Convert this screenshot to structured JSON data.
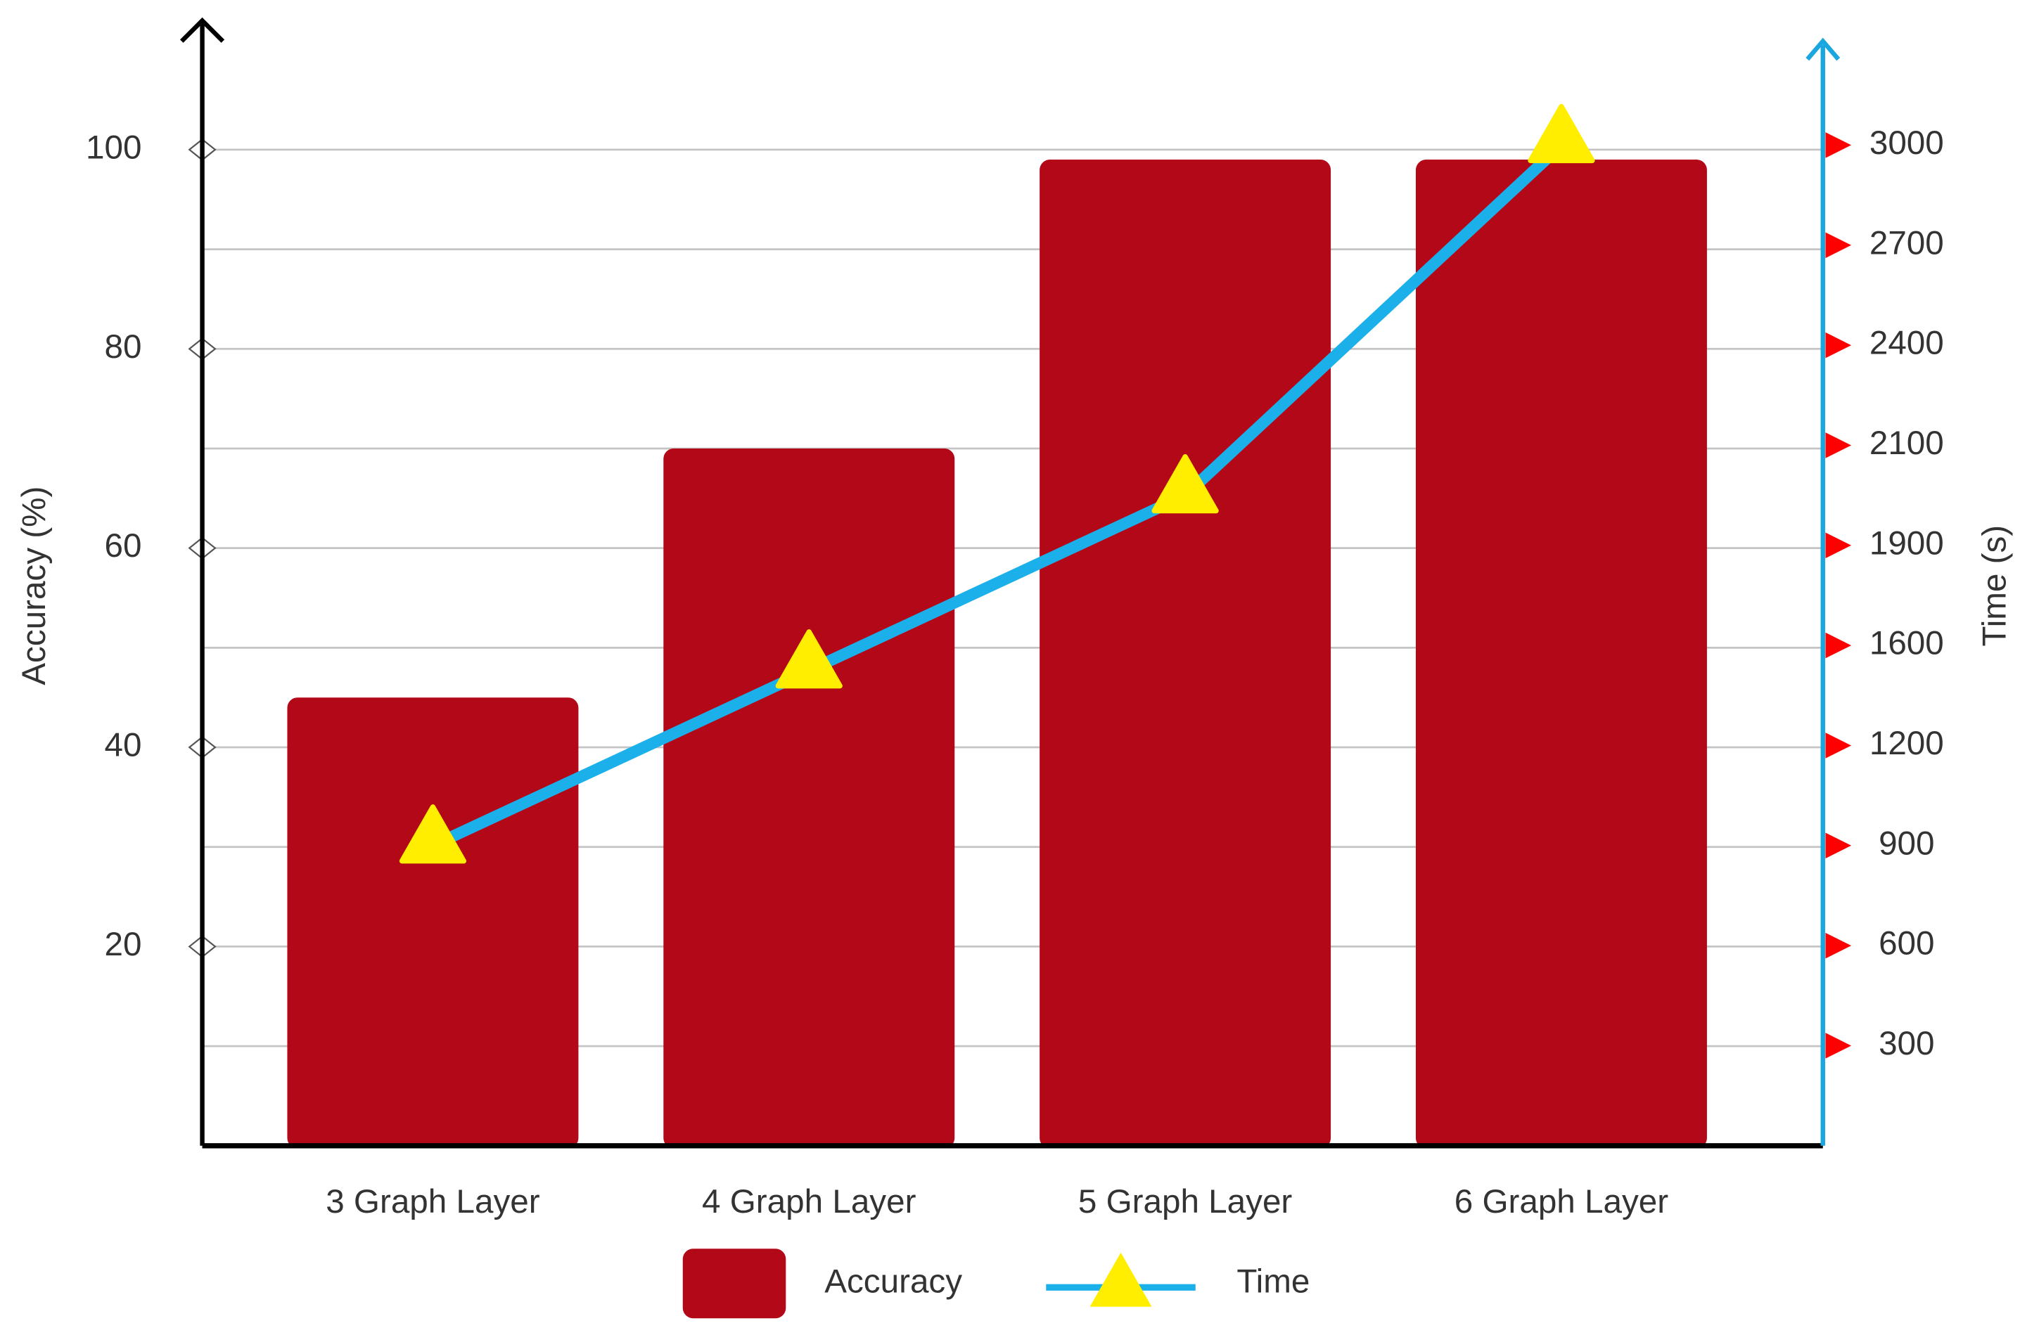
{
  "chart_data": {
    "type": "bar",
    "x_label": null,
    "y_label": "Accuracy (%)",
    "y2_label": "Time (s)",
    "categories": [
      "3 Graph Layer",
      "4 Graph Layer",
      "5 Graph Layer",
      "6 Graph Layer"
    ],
    "series": [
      {
        "name": "Accuracy",
        "type": "bar",
        "color": "#b30818",
        "values": [
          45,
          70,
          99,
          99
        ]
      },
      {
        "name": "Time",
        "type": "line",
        "axis": "y2",
        "color": "#1cb0ea",
        "marker_color": "#ffee00",
        "values": [
          900,
          1500,
          2000,
          3000
        ]
      }
    ],
    "ylim": [
      0,
      112
    ],
    "yticks": [
      20,
      40,
      60,
      80,
      100
    ],
    "minor_yticks": [
      10,
      30,
      50,
      70,
      90
    ],
    "y2lim": [
      0,
      3300
    ],
    "y2ticks": [
      300,
      600,
      900,
      1200,
      1600,
      1900,
      2100,
      2400,
      2700,
      3000
    ],
    "y2_scale": "evenly spaced ticks",
    "grid": true,
    "legend": "bottom"
  }
}
